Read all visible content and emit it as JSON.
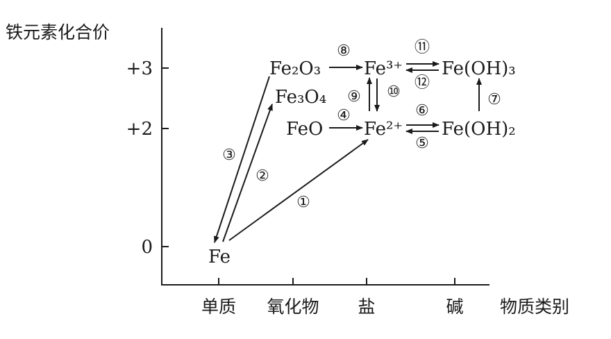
{
  "axes": {
    "y_title": "铁元素化合价",
    "x_title": "物质类别",
    "y_ticks": [
      "+3",
      "+2",
      "0"
    ],
    "x_ticks": [
      "单质",
      "氧化物",
      "盐",
      "碱"
    ]
  },
  "species": {
    "fe": "Fe",
    "fe2o3": "Fe₂O₃",
    "fe3o4": "Fe₃O₄",
    "feo": "FeO",
    "fe3plus": "Fe³⁺",
    "fe2plus": "Fe²⁺",
    "feoh3": "Fe(OH)₃",
    "feoh2": "Fe(OH)₂"
  },
  "reactions": [
    "①",
    "②",
    "③",
    "④",
    "⑤",
    "⑥",
    "⑦",
    "⑧",
    "⑨",
    "⑩",
    "⑪",
    "⑫"
  ]
}
